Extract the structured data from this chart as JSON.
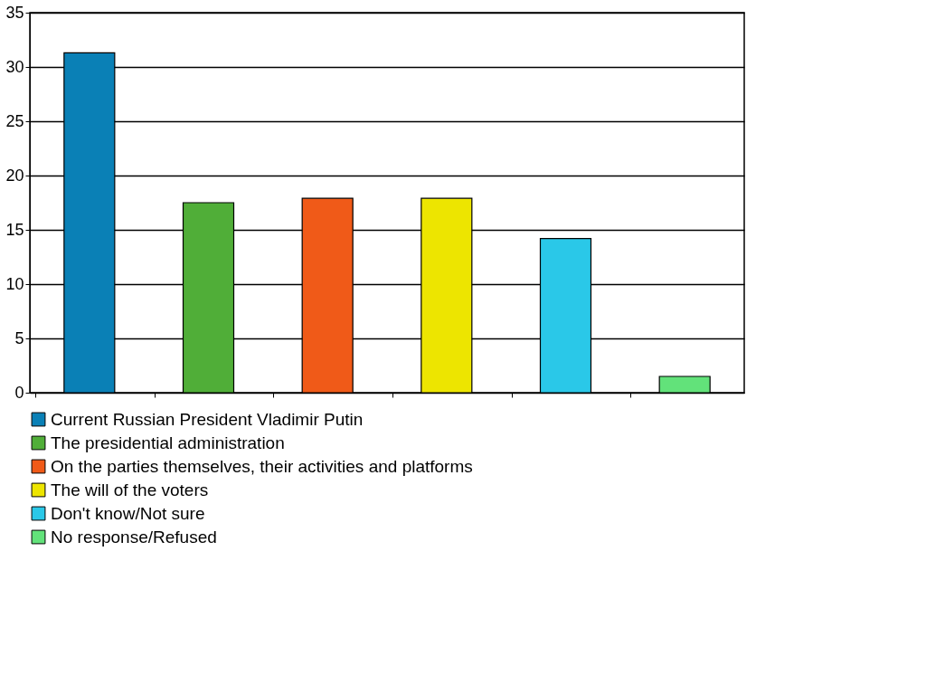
{
  "chart_data": {
    "type": "bar",
    "categories": [
      null,
      null,
      null,
      null,
      null,
      null
    ],
    "series": [
      {
        "name": "Current Russian President Vladimir Putin",
        "color": "#0a80b6",
        "values": [
          31.3,
          null,
          null,
          null,
          null,
          null
        ]
      },
      {
        "name": "The presidential administration",
        "color": "#50ae38",
        "values": [
          null,
          17.5,
          null,
          null,
          null,
          null
        ]
      },
      {
        "name": "On the parties themselves, their activities and platforms",
        "color": "#f05a18",
        "values": [
          null,
          null,
          17.9,
          null,
          null,
          null
        ]
      },
      {
        "name": "The will of the voters",
        "color": "#ede500",
        "values": [
          null,
          null,
          null,
          17.9,
          null,
          null
        ]
      },
      {
        "name": "Don't know/Not sure",
        "color": "#2ac8e8",
        "values": [
          null,
          null,
          null,
          null,
          14.2,
          null
        ]
      },
      {
        "name": "No response/Refused",
        "color": "#62e27a",
        "values": [
          null,
          null,
          null,
          null,
          null,
          1.5
        ]
      }
    ],
    "ylim": [
      0,
      35
    ],
    "yticks": [
      0,
      5,
      10,
      15,
      20,
      25,
      30,
      35
    ],
    "grid": "y",
    "legend": "bottom",
    "tick_labels": "y"
  }
}
